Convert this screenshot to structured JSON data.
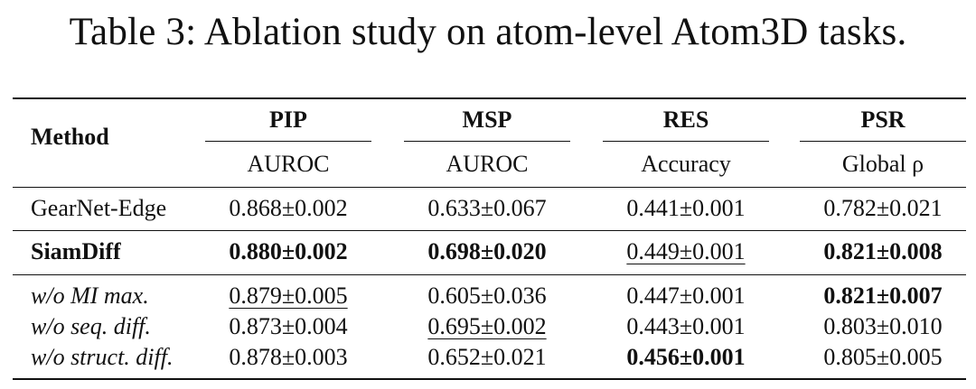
{
  "caption": "Table 3: Ablation study on atom-level Atom3D tasks.",
  "header": {
    "method": "Method",
    "tasks": [
      {
        "name": "PIP",
        "metric": "AUROC"
      },
      {
        "name": "MSP",
        "metric": "AUROC"
      },
      {
        "name": "RES",
        "metric": "Accuracy"
      },
      {
        "name": "PSR",
        "metric": "Global ρ"
      }
    ]
  },
  "rows": [
    {
      "method": "GearNet-Edge",
      "method_style": "normal",
      "cells": [
        {
          "value": "0.868±0.002",
          "bold": false,
          "underline": false
        },
        {
          "value": "0.633±0.067",
          "bold": false,
          "underline": false
        },
        {
          "value": "0.441±0.001",
          "bold": false,
          "underline": false
        },
        {
          "value": "0.782±0.021",
          "bold": false,
          "underline": false
        }
      ]
    },
    {
      "method": "SiamDiff",
      "method_style": "bold",
      "cells": [
        {
          "value": "0.880±0.002",
          "bold": true,
          "underline": false
        },
        {
          "value": "0.698±0.020",
          "bold": true,
          "underline": false
        },
        {
          "value": "0.449±0.001",
          "bold": false,
          "underline": true
        },
        {
          "value": "0.821±0.008",
          "bold": true,
          "underline": false
        }
      ]
    },
    {
      "method": "w/o MI max.",
      "method_style": "italic",
      "cells": [
        {
          "value": "0.879±0.005",
          "bold": false,
          "underline": true
        },
        {
          "value": "0.605±0.036",
          "bold": false,
          "underline": false
        },
        {
          "value": "0.447±0.001",
          "bold": false,
          "underline": false
        },
        {
          "value": "0.821±0.007",
          "bold": true,
          "underline": false
        }
      ]
    },
    {
      "method": "w/o seq. diff.",
      "method_style": "italic",
      "cells": [
        {
          "value": "0.873±0.004",
          "bold": false,
          "underline": false
        },
        {
          "value": "0.695±0.002",
          "bold": false,
          "underline": true
        },
        {
          "value": "0.443±0.001",
          "bold": false,
          "underline": false
        },
        {
          "value": "0.803±0.010",
          "bold": false,
          "underline": false
        }
      ]
    },
    {
      "method": "w/o struct. diff.",
      "method_style": "italic",
      "cells": [
        {
          "value": "0.878±0.003",
          "bold": false,
          "underline": false
        },
        {
          "value": "0.652±0.021",
          "bold": false,
          "underline": false
        },
        {
          "value": "0.456±0.001",
          "bold": true,
          "underline": false
        },
        {
          "value": "0.805±0.005",
          "bold": false,
          "underline": false
        }
      ]
    }
  ]
}
